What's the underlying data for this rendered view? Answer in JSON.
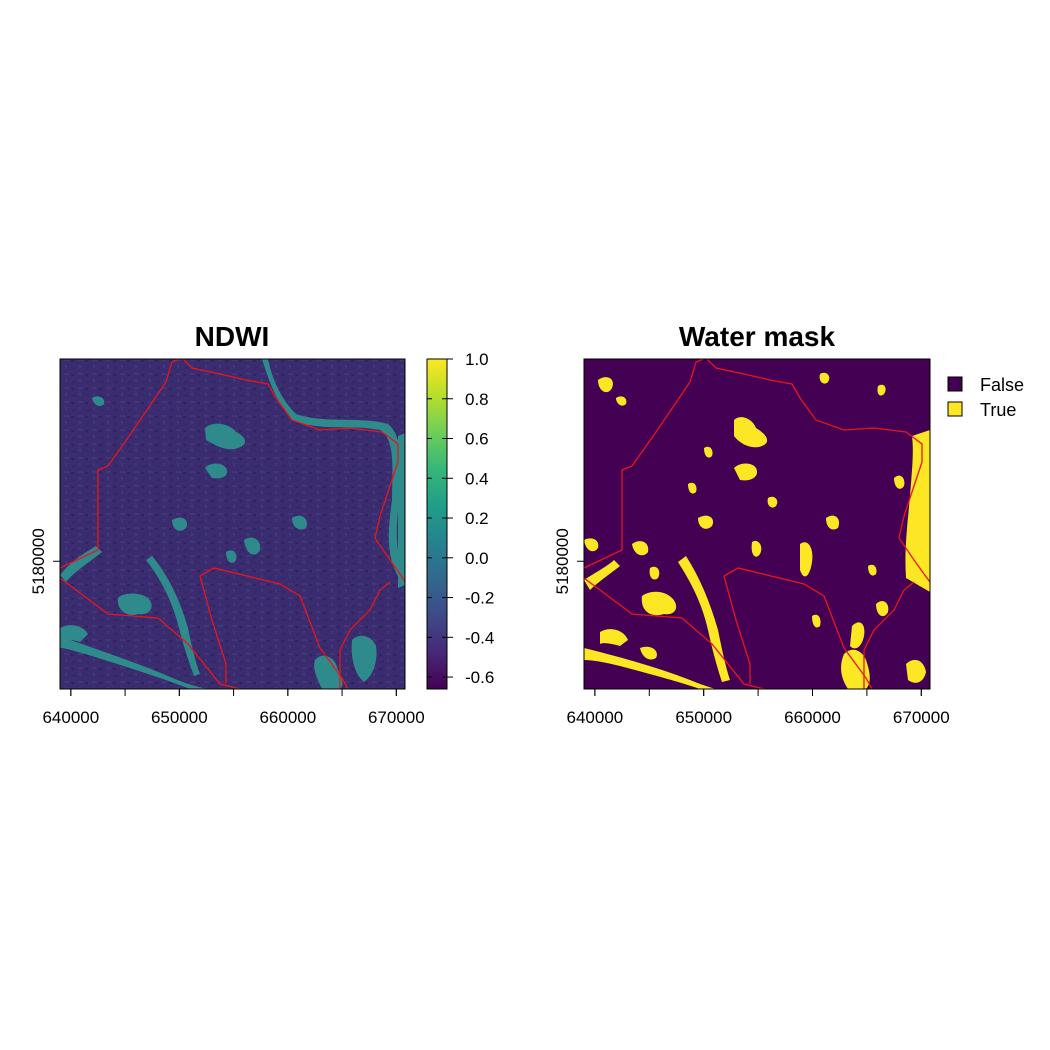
{
  "colors": {
    "background": "#ffffff",
    "boundary": "#e8161b",
    "ndwi_dark": "#3b2b6f",
    "ndwi_water": "#2f8a8c",
    "mask_false": "#440154",
    "mask_true": "#fde725",
    "colorbar_stops": [
      "#440154",
      "#482878",
      "#3e4a89",
      "#31688e",
      "#26828e",
      "#1f9e89",
      "#35b779",
      "#6ece58",
      "#b5de2b",
      "#fde725"
    ]
  },
  "chart_data": [
    {
      "type": "heatmap",
      "title": "NDWI",
      "xlabel": "",
      "ylabel": "",
      "x_ticks": [
        640000,
        650000,
        660000,
        670000
      ],
      "x_tick_labels": [
        "640000",
        "650000",
        "660000",
        "670000"
      ],
      "y_ticks": [
        5180000
      ],
      "y_tick_labels": [
        "5180000"
      ],
      "xlim": [
        639000,
        670800
      ],
      "ylim": [
        5168000,
        5199000
      ],
      "colorbar": {
        "range": [
          -0.66,
          1.0
        ],
        "ticks": [
          1.0,
          0.8,
          0.6,
          0.4,
          0.2,
          0.0,
          -0.2,
          -0.4,
          -0.6
        ],
        "labels": [
          "1.0",
          "0.8",
          "0.6",
          "0.4",
          "0.2",
          "0.0",
          "-0.2",
          "-0.4",
          "-0.6"
        ]
      }
    },
    {
      "type": "heatmap",
      "title": "Water mask",
      "xlabel": "",
      "ylabel": "",
      "x_ticks": [
        640000,
        650000,
        660000,
        670000
      ],
      "x_tick_labels": [
        "640000",
        "650000",
        "660000",
        "670000"
      ],
      "y_ticks": [
        5180000
      ],
      "y_tick_labels": [
        "5180000"
      ],
      "xlim": [
        639000,
        670800
      ],
      "ylim": [
        5168000,
        5199000
      ],
      "legend": {
        "placement": "right",
        "entries": [
          {
            "label": "False",
            "color": "#440154"
          },
          {
            "label": "True",
            "color": "#fde725"
          }
        ]
      }
    }
  ]
}
